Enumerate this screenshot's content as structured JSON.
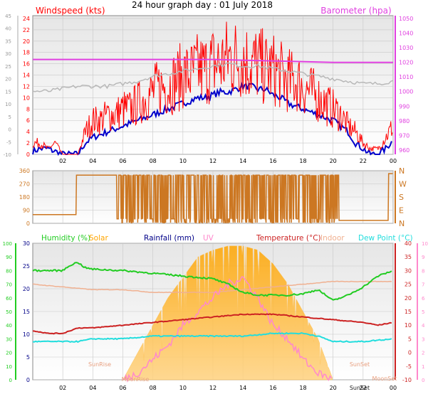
{
  "page_title": "24 hour graph day : 01 July 2018",
  "colors": {
    "wind_avg": "#0000cc",
    "wind_gust": "#ff0000",
    "baro": "#e040e0",
    "dir": "#cc7722",
    "humidity": "#22cc22",
    "solar": "#ffa500",
    "uv": "#ff88cc",
    "temperature": "#cc2222",
    "indoor": "#f0b090",
    "dewpoint": "#22dddd",
    "rain": "#000088",
    "plot_bg_top": "#eaeaea",
    "plot_bg_bottom": "#ffffff",
    "grid": "#c8c8c8"
  },
  "x_tick_labels": [
    "02",
    "04",
    "06",
    "08",
    "10",
    "12",
    "14",
    "16",
    "18",
    "20",
    "22",
    "00"
  ],
  "chart_data": [
    {
      "type": "line",
      "id": "wind",
      "title": "",
      "y_left_title": "Windspeed (kts)",
      "y_right_title": "Barometer (hpa)",
      "x_range_hours": [
        0,
        24
      ],
      "y_left_range": [
        0,
        24.5
      ],
      "y_right_range": [
        957,
        1052
      ],
      "y_left_ticks": [
        0,
        2,
        4,
        6,
        8,
        10,
        12,
        14,
        16,
        18,
        20,
        22,
        24
      ],
      "y_right_ticks": [
        960,
        970,
        980,
        990,
        1000,
        1010,
        1020,
        1030,
        1040,
        1050
      ],
      "y_far_left_ticks": [
        -10,
        -5,
        0,
        5,
        10,
        15,
        20,
        25,
        30,
        35,
        40,
        45
      ],
      "grid": true,
      "series": [
        {
          "name": "Windspeed (kts)",
          "axis": "left",
          "style": "avg",
          "x": [
            0,
            0.5,
            1,
            1.5,
            2,
            2.5,
            3,
            3.5,
            4,
            4.5,
            5,
            5.5,
            6,
            6.5,
            7,
            7.5,
            8,
            8.5,
            9,
            9.5,
            10,
            10.5,
            11,
            11.5,
            12,
            12.5,
            13,
            13.5,
            14,
            14.5,
            15,
            15.5,
            16,
            16.5,
            17,
            17.5,
            18,
            18.5,
            19,
            19.5,
            20,
            20.5,
            21,
            21.5,
            22,
            22.5,
            23,
            23.5,
            24
          ],
          "values": [
            0.5,
            1,
            1,
            0.5,
            0,
            0,
            0,
            2,
            3,
            3.5,
            4,
            4.5,
            5,
            5.5,
            6,
            6.5,
            7,
            7.5,
            8,
            8.5,
            9,
            9.5,
            10,
            10,
            10.5,
            11,
            11,
            11.5,
            12,
            12,
            11.5,
            11.5,
            10.5,
            10,
            9,
            8.5,
            8,
            7.5,
            7,
            6.5,
            6,
            5,
            4,
            2,
            1,
            0,
            0,
            1,
            2.5
          ]
        },
        {
          "name": "Gust",
          "axis": "left",
          "style": "gust",
          "x": [
            0,
            0.5,
            1,
            1.5,
            2,
            2.5,
            3,
            3.5,
            4,
            4.5,
            5,
            5.5,
            6,
            6.5,
            7,
            7.5,
            8,
            8.5,
            9,
            9.5,
            10,
            10.5,
            11,
            11.5,
            12,
            12.5,
            13,
            13.5,
            14,
            14.5,
            15,
            15.5,
            16,
            16.5,
            17,
            17.5,
            18,
            18.5,
            19,
            19.5,
            20,
            20.5,
            21,
            21.5,
            22,
            22.5,
            23,
            23.5,
            24
          ],
          "values": [
            2,
            2,
            1,
            2,
            0,
            0,
            0,
            4,
            6,
            6,
            7,
            7,
            8,
            8,
            9,
            10,
            11,
            12,
            12,
            13,
            14,
            14,
            15,
            15,
            16,
            16,
            17,
            17,
            17,
            16,
            16,
            15,
            15,
            14,
            13,
            13,
            12,
            11,
            10,
            9,
            8,
            7,
            5,
            4,
            2,
            1,
            1,
            3,
            5
          ]
        },
        {
          "name": "Barometer (hpa)",
          "axis": "right",
          "style": "baro",
          "x": [
            0,
            4,
            8,
            12,
            16,
            20,
            24
          ],
          "values": [
            1022,
            1022,
            1022,
            1022,
            1021,
            1020,
            1020
          ]
        },
        {
          "name": "Gray",
          "axis": "far_left",
          "style": "gray",
          "x": [
            0,
            1,
            2,
            3,
            4,
            5,
            6,
            7,
            8,
            9,
            10,
            11,
            12,
            13,
            14,
            15,
            16,
            17,
            18,
            19,
            20,
            21,
            22,
            23,
            24
          ],
          "values": [
            15,
            15,
            16,
            17,
            17,
            17,
            18,
            19,
            21,
            22,
            23,
            24,
            25,
            26,
            25,
            25,
            24,
            23,
            22,
            21,
            20,
            19,
            18,
            18,
            19
          ]
        }
      ]
    },
    {
      "type": "line",
      "id": "direction",
      "title": "",
      "x_range_hours": [
        0,
        24
      ],
      "y_left_range": [
        0,
        360
      ],
      "y_left_ticks": [
        0,
        90,
        180,
        270,
        360
      ],
      "y_right_labels": [
        "N",
        "W",
        "S",
        "E",
        "N"
      ],
      "grid": true,
      "series": [
        {
          "name": "Wind direction",
          "x": [
            0,
            2.9,
            3.0,
            5.5,
            6,
            24
          ],
          "values": [
            60,
            60,
            330,
            330,
            180,
            180
          ]
        }
      ]
    },
    {
      "type": "area",
      "id": "temp_humidity",
      "title": "",
      "legend": [
        "Humidity (%)",
        "Solar",
        "Rainfall (mm)",
        "UV",
        "Temperature (°C)",
        "Indoor",
        "Dew Point (°C)"
      ],
      "legend_placement": "top",
      "x_range_hours": [
        0,
        24
      ],
      "humidity_axis_range": [
        0,
        100
      ],
      "humidity_ticks": [
        0,
        10,
        20,
        30,
        40,
        50,
        60,
        70,
        80,
        90,
        100
      ],
      "rain_axis_range": [
        0,
        30
      ],
      "rain_ticks": [
        0,
        5,
        10,
        15,
        20,
        25,
        30
      ],
      "temp_axis_range": [
        -10,
        40
      ],
      "temp_ticks": [
        -10,
        -5,
        0,
        5,
        10,
        15,
        20,
        25,
        30,
        35,
        40
      ],
      "uv_axis_range": [
        0,
        10
      ],
      "uv_ticks": [
        0,
        1,
        2,
        3,
        4,
        5,
        6,
        7,
        8,
        9,
        10
      ],
      "annotations": [
        "SunRise",
        "SunSet",
        "MoonRise",
        "SunSet",
        "MoonSet"
      ],
      "grid": true,
      "series": [
        {
          "name": "Humidity (%)",
          "axis": "humidity",
          "x": [
            0,
            1,
            2,
            2.5,
            3,
            3.5,
            4,
            6,
            8,
            10,
            12,
            13,
            14,
            15,
            16,
            17,
            18,
            19,
            20,
            21,
            22,
            23,
            24
          ],
          "values": [
            80,
            80,
            80,
            84,
            86,
            82,
            81,
            80,
            78,
            76,
            74,
            70,
            64,
            62,
            62,
            62,
            63,
            66,
            58,
            62,
            68,
            76,
            80
          ]
        },
        {
          "name": "Temperature (°C)",
          "axis": "temp",
          "x": [
            0,
            1,
            2,
            3,
            4,
            6,
            8,
            10,
            12,
            14,
            16,
            18,
            20,
            22,
            23,
            24
          ],
          "values": [
            8,
            7,
            7,
            9,
            9,
            10,
            11,
            12,
            13,
            14,
            14,
            13,
            12,
            11,
            10,
            11
          ]
        },
        {
          "name": "Indoor",
          "axis": "temp",
          "x": [
            0,
            2,
            4,
            6,
            8,
            10,
            12,
            14,
            16,
            18,
            20,
            22,
            24
          ],
          "values": [
            25,
            24,
            23,
            23,
            22,
            22,
            22,
            23,
            24,
            25,
            26,
            26,
            26
          ]
        },
        {
          "name": "Dew Point (°C)",
          "axis": "temp",
          "x": [
            0,
            2,
            3,
            4,
            6,
            8,
            10,
            12,
            14,
            16,
            18,
            19,
            20,
            22,
            24
          ],
          "values": [
            4,
            4,
            4,
            5,
            5,
            6,
            6,
            6,
            6,
            7,
            7,
            6,
            4,
            4,
            5
          ]
        },
        {
          "name": "Solar",
          "axis": "uv",
          "x": [
            6,
            7,
            8,
            9,
            10,
            11,
            12,
            13,
            14,
            15,
            16,
            17,
            18,
            19,
            20
          ],
          "values": [
            0,
            2,
            4,
            6,
            7.5,
            9,
            9.5,
            9.8,
            9.8,
            9.5,
            8.5,
            7,
            5,
            3,
            0
          ]
        },
        {
          "name": "UV",
          "axis": "uv",
          "x": [
            6,
            7,
            8,
            9,
            10,
            11,
            12,
            13,
            14,
            15,
            16,
            17,
            18,
            19,
            20
          ],
          "values": [
            0,
            0.5,
            1.5,
            2.5,
            4,
            5,
            6,
            7,
            7.5,
            6,
            4,
            3,
            1.5,
            0.5,
            0
          ]
        }
      ]
    }
  ]
}
